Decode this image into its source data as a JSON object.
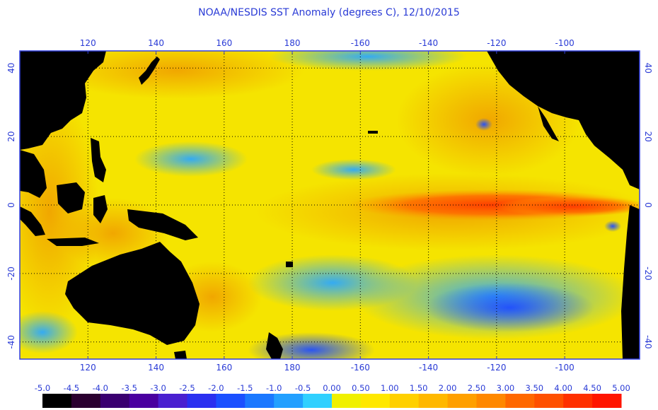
{
  "title": "NOAA/NESDIS SST Anomaly (degrees C), 12/10/2015",
  "map": {
    "lon_ticks_top": [
      "120",
      "140",
      "160",
      "180",
      "-160",
      "-140",
      "-120",
      "-100"
    ],
    "lon_ticks_bottom": [
      "120",
      "140",
      "160",
      "180",
      "-160",
      "-140",
      "-120",
      "-100"
    ],
    "lat_ticks_left": [
      "40",
      "20",
      "0",
      "-20",
      "-40"
    ],
    "lat_ticks_right": [
      "40",
      "20",
      "0",
      "-20",
      "-40"
    ],
    "lon_values": [
      120,
      140,
      160,
      180,
      200,
      220,
      240,
      260
    ],
    "lat_values": [
      40,
      20,
      0,
      -20,
      -40
    ],
    "lon_range": [
      100,
      282
    ],
    "lat_range": [
      45,
      -45
    ],
    "grid": true,
    "colors": {
      "land": "#000000",
      "background": "#f5e600",
      "warm": "#f0a000",
      "hot": "#ff4a00",
      "cool": "#22aaff",
      "cold": "#2a55ff",
      "frame": "#3340e0"
    }
  },
  "colorbar": {
    "labels": [
      "-5.0",
      "-4.5",
      "-4.0",
      "-3.5",
      "-3.0",
      "-2.5",
      "-2.0",
      "-1.5",
      "-1.0",
      "-0.5",
      "0.00",
      "0.50",
      "1.00",
      "1.50",
      "2.00",
      "2.50",
      "3.00",
      "3.50",
      "4.00",
      "4.50",
      "5.00"
    ],
    "values": [
      -5.0,
      -4.5,
      -4.0,
      -3.5,
      -3.0,
      -2.5,
      -2.0,
      -1.5,
      -1.0,
      -0.5,
      0.0,
      0.5,
      1.0,
      1.5,
      2.0,
      2.5,
      3.0,
      3.5,
      4.0,
      4.5,
      5.0
    ],
    "colors": [
      "#000000",
      "#2a0030",
      "#3a0070",
      "#4a00a0",
      "#4a20d0",
      "#2a30f0",
      "#1a50ff",
      "#1a78ff",
      "#22a0ff",
      "#30d0ff",
      "#f0f000",
      "#ffe800",
      "#ffd000",
      "#ffb800",
      "#ffa000",
      "#ff8800",
      "#ff6800",
      "#ff5000",
      "#ff3000",
      "#ff1500"
    ]
  }
}
